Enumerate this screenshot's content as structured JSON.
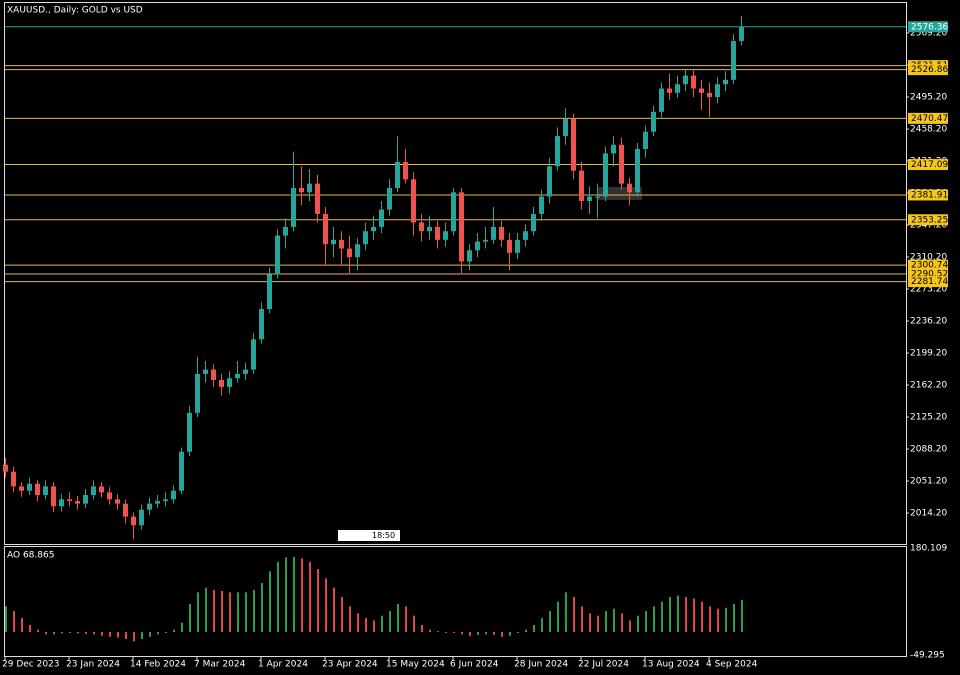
{
  "chart_data": {
    "type": "candlestick",
    "title": "XAUUSD., Daily:  GOLD vs USD",
    "categories": [
      "29 Dec 2023",
      null,
      null,
      null,
      null,
      null,
      null,
      null,
      "23 Jan 2024",
      null,
      null,
      null,
      null,
      null,
      null,
      null,
      "14 Feb 2024",
      null,
      null,
      null,
      null,
      null,
      null,
      null,
      "7 Mar 2024",
      null,
      null,
      null,
      null,
      null,
      null,
      null,
      "1 Apr 2024",
      null,
      null,
      null,
      null,
      null,
      null,
      null,
      "23 Apr 2024",
      null,
      null,
      null,
      null,
      null,
      null,
      null,
      "15 May 2024",
      null,
      null,
      null,
      null,
      null,
      null,
      null,
      "6 Jun 2024",
      null,
      null,
      null,
      null,
      null,
      null,
      null,
      "28 Jun 2024",
      null,
      null,
      null,
      null,
      null,
      null,
      null,
      "22 Jul 2024",
      null,
      null,
      null,
      null,
      null,
      null,
      null,
      "13 Aug 2024",
      null,
      null,
      null,
      null,
      null,
      null,
      null,
      "4 Sep 2024",
      null,
      null,
      null,
      null
    ],
    "ohlc": [
      [
        2070,
        2078,
        2055,
        2062
      ],
      [
        2062,
        2068,
        2038,
        2045
      ],
      [
        2045,
        2050,
        2033,
        2040
      ],
      [
        2040,
        2055,
        2035,
        2048
      ],
      [
        2048,
        2052,
        2028,
        2035
      ],
      [
        2035,
        2052,
        2030,
        2045
      ],
      [
        2045,
        2050,
        2015,
        2022
      ],
      [
        2022,
        2036,
        2016,
        2030
      ],
      [
        2030,
        2038,
        2022,
        2028
      ],
      [
        2028,
        2034,
        2018,
        2025
      ],
      [
        2025,
        2042,
        2020,
        2035
      ],
      [
        2035,
        2052,
        2030,
        2045
      ],
      [
        2045,
        2050,
        2032,
        2038
      ],
      [
        2038,
        2044,
        2024,
        2030
      ],
      [
        2030,
        2036,
        2018,
        2025
      ],
      [
        2025,
        2030,
        2002,
        2010
      ],
      [
        2010,
        2015,
        1984,
        2000
      ],
      [
        2000,
        2024,
        1995,
        2018
      ],
      [
        2018,
        2032,
        2012,
        2025
      ],
      [
        2025,
        2035,
        2020,
        2028
      ],
      [
        2028,
        2038,
        2022,
        2030
      ],
      [
        2030,
        2046,
        2025,
        2040
      ],
      [
        2040,
        2090,
        2036,
        2085
      ],
      [
        2085,
        2138,
        2080,
        2130
      ],
      [
        2130,
        2195,
        2125,
        2175
      ],
      [
        2175,
        2190,
        2165,
        2180
      ],
      [
        2180,
        2186,
        2160,
        2168
      ],
      [
        2168,
        2175,
        2150,
        2160
      ],
      [
        2160,
        2178,
        2152,
        2170
      ],
      [
        2170,
        2190,
        2165,
        2175
      ],
      [
        2175,
        2188,
        2168,
        2180
      ],
      [
        2180,
        2222,
        2175,
        2215
      ],
      [
        2215,
        2258,
        2210,
        2250
      ],
      [
        2250,
        2298,
        2245,
        2290
      ],
      [
        2290,
        2342,
        2285,
        2335
      ],
      [
        2335,
        2355,
        2320,
        2345
      ],
      [
        2345,
        2432,
        2340,
        2390
      ],
      [
        2390,
        2415,
        2370,
        2385
      ],
      [
        2385,
        2412,
        2375,
        2395
      ],
      [
        2395,
        2405,
        2350,
        2360
      ],
      [
        2360,
        2368,
        2300,
        2325
      ],
      [
        2325,
        2345,
        2310,
        2330
      ],
      [
        2330,
        2340,
        2300,
        2320
      ],
      [
        2320,
        2335,
        2290,
        2310
      ],
      [
        2310,
        2332,
        2295,
        2325
      ],
      [
        2325,
        2350,
        2318,
        2340
      ],
      [
        2340,
        2358,
        2330,
        2345
      ],
      [
        2345,
        2375,
        2338,
        2365
      ],
      [
        2365,
        2400,
        2358,
        2390
      ],
      [
        2390,
        2450,
        2385,
        2420
      ],
      [
        2420,
        2435,
        2395,
        2400
      ],
      [
        2400,
        2408,
        2335,
        2350
      ],
      [
        2350,
        2360,
        2328,
        2340
      ],
      [
        2340,
        2358,
        2330,
        2345
      ],
      [
        2345,
        2352,
        2320,
        2330
      ],
      [
        2330,
        2350,
        2322,
        2340
      ],
      [
        2340,
        2390,
        2335,
        2385
      ],
      [
        2385,
        2390,
        2290,
        2305
      ],
      [
        2305,
        2325,
        2295,
        2318
      ],
      [
        2318,
        2338,
        2310,
        2328
      ],
      [
        2328,
        2345,
        2320,
        2330
      ],
      [
        2330,
        2368,
        2325,
        2345
      ],
      [
        2345,
        2352,
        2322,
        2330
      ],
      [
        2330,
        2338,
        2295,
        2315
      ],
      [
        2315,
        2338,
        2308,
        2330
      ],
      [
        2330,
        2348,
        2322,
        2340
      ],
      [
        2340,
        2368,
        2335,
        2360
      ],
      [
        2360,
        2388,
        2352,
        2380
      ],
      [
        2380,
        2425,
        2372,
        2415
      ],
      [
        2415,
        2460,
        2410,
        2450
      ],
      [
        2450,
        2482,
        2440,
        2470
      ],
      [
        2470,
        2476,
        2400,
        2410
      ],
      [
        2410,
        2420,
        2365,
        2375
      ],
      [
        2375,
        2392,
        2360,
        2380
      ],
      [
        2380,
        2395,
        2355,
        2380
      ],
      [
        2380,
        2438,
        2375,
        2430
      ],
      [
        2430,
        2450,
        2415,
        2440
      ],
      [
        2440,
        2448,
        2388,
        2395
      ],
      [
        2395,
        2402,
        2370,
        2385
      ],
      [
        2385,
        2442,
        2380,
        2435
      ],
      [
        2435,
        2462,
        2425,
        2455
      ],
      [
        2455,
        2485,
        2450,
        2478
      ],
      [
        2478,
        2512,
        2470,
        2505
      ],
      [
        2505,
        2522,
        2492,
        2500
      ],
      [
        2500,
        2520,
        2494,
        2510
      ],
      [
        2510,
        2528,
        2502,
        2520
      ],
      [
        2520,
        2526,
        2495,
        2505
      ],
      [
        2505,
        2515,
        2480,
        2500
      ],
      [
        2500,
        2512,
        2472,
        2495
      ],
      [
        2495,
        2518,
        2488,
        2510
      ],
      [
        2510,
        2525,
        2502,
        2515
      ],
      [
        2515,
        2568,
        2510,
        2560
      ],
      [
        2560,
        2589,
        2555,
        2576
      ]
    ],
    "up_color": "#26a69a",
    "down_color": "#ef5350",
    "ylim": [
      1977.2,
      2602.7
    ],
    "yticks": [
      {
        "value": 2014.2,
        "label": "2014.20"
      },
      {
        "value": 2051.2,
        "label": "2051.20"
      },
      {
        "value": 2088.2,
        "label": "2088.20"
      },
      {
        "value": 2125.2,
        "label": "2125.20"
      },
      {
        "value": 2162.2,
        "label": "2162.20"
      },
      {
        "value": 2199.2,
        "label": "2199.20"
      },
      {
        "value": 2236.2,
        "label": "2236.20"
      },
      {
        "value": 2273.2,
        "label": "2273.20"
      },
      {
        "value": 2310.2,
        "label": "2310.20"
      },
      {
        "value": 2347.2,
        "label": "2347.20"
      },
      {
        "value": 2384.2,
        "label": "2384.20"
      },
      {
        "value": 2421.2,
        "label": "2421.20"
      },
      {
        "value": 2458.2,
        "label": "2458.20"
      },
      {
        "value": 2495.2,
        "label": "2495.20"
      },
      {
        "value": 2532.2,
        "label": "2532.20"
      },
      {
        "value": 2569.2,
        "label": "2569.20"
      }
    ],
    "levels": [
      2531.51,
      2526.86,
      2470.47,
      2417.09,
      2381.91,
      2353.25,
      2300.74,
      2290.52,
      2281.74
    ],
    "level_color": "#e8b84a",
    "current_price": 2576.36,
    "countdown": "18:50",
    "ao": {
      "title": "AO 68.865",
      "ylim": [
        -49.295,
        180.109
      ],
      "yticks": [
        180.109,
        -49.295
      ],
      "up_color": "#2e9e4a",
      "down_color": "#e04848",
      "values": [
        55,
        45,
        30,
        15,
        5,
        -5,
        -5,
        -3,
        -2,
        -3,
        -4,
        -5,
        -8,
        -10,
        -12,
        -15,
        -20,
        -15,
        -10,
        -5,
        0,
        5,
        20,
        60,
        85,
        95,
        90,
        88,
        85,
        85,
        85,
        90,
        105,
        130,
        150,
        160,
        161,
        158,
        150,
        135,
        115,
        95,
        75,
        55,
        40,
        30,
        25,
        35,
        45,
        60,
        55,
        35,
        15,
        5,
        2,
        0,
        -2,
        -5,
        -8,
        -6,
        -5,
        -6,
        -10,
        -8,
        -2,
        5,
        15,
        30,
        45,
        65,
        85,
        75,
        55,
        40,
        35,
        45,
        50,
        40,
        25,
        35,
        45,
        55,
        65,
        75,
        78,
        75,
        72,
        65,
        55,
        50,
        52,
        60,
        68.865
      ]
    }
  }
}
